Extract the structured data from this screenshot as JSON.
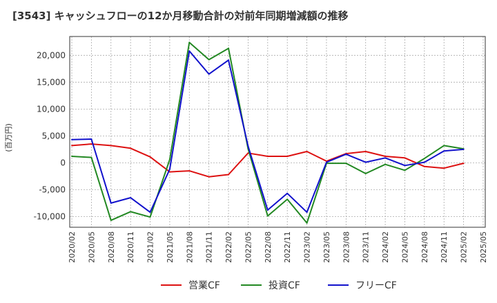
{
  "chart_data": {
    "type": "line",
    "title": "[3543]  キャッシュフローの12か月移動合計の対前年同期増減額の推移",
    "ylabel": "(百万円)",
    "xlabel": "",
    "x": [
      "2020/02",
      "2020/05",
      "2020/08",
      "2020/11",
      "2021/02",
      "2021/05",
      "2021/08",
      "2021/11",
      "2022/02",
      "2022/05",
      "2022/08",
      "2022/11",
      "2023/02",
      "2023/05",
      "2023/08",
      "2023/11",
      "2024/02",
      "2024/05",
      "2024/08",
      "2024/11",
      "2025/02",
      "2025/05"
    ],
    "ylim": [
      -12000,
      23500
    ],
    "yticks": [
      -10000,
      -5000,
      0,
      5000,
      10000,
      15000,
      20000
    ],
    "ytick_labels": [
      "-10,000",
      "-5,000",
      "0",
      "5,000",
      "10,000",
      "15,000",
      "20,000"
    ],
    "grid": true,
    "legend_position": "bottom",
    "series": [
      {
        "name": "営業CF",
        "color": "#dd1111",
        "values": [
          3200,
          3500,
          3200,
          2700,
          1100,
          -1700,
          -1500,
          -2600,
          -2200,
          1800,
          1200,
          1200,
          2100,
          300,
          1700,
          2100,
          1200,
          900,
          -700,
          -1000,
          -100,
          null
        ]
      },
      {
        "name": "投資CF",
        "color": "#228822",
        "values": [
          1200,
          1000,
          -10700,
          -9100,
          -10100,
          600,
          22400,
          19200,
          21300,
          2600,
          -9900,
          -6800,
          -11200,
          -100,
          -100,
          -2000,
          -300,
          -1400,
          800,
          3200,
          2600,
          null
        ]
      },
      {
        "name": "フリーCF",
        "color": "#1111cc",
        "values": [
          4300,
          4400,
          -7500,
          -6500,
          -9200,
          -1200,
          20800,
          16500,
          19100,
          3100,
          -8800,
          -5700,
          -9200,
          100,
          1600,
          100,
          900,
          -500,
          100,
          2200,
          2500,
          null
        ]
      }
    ]
  }
}
